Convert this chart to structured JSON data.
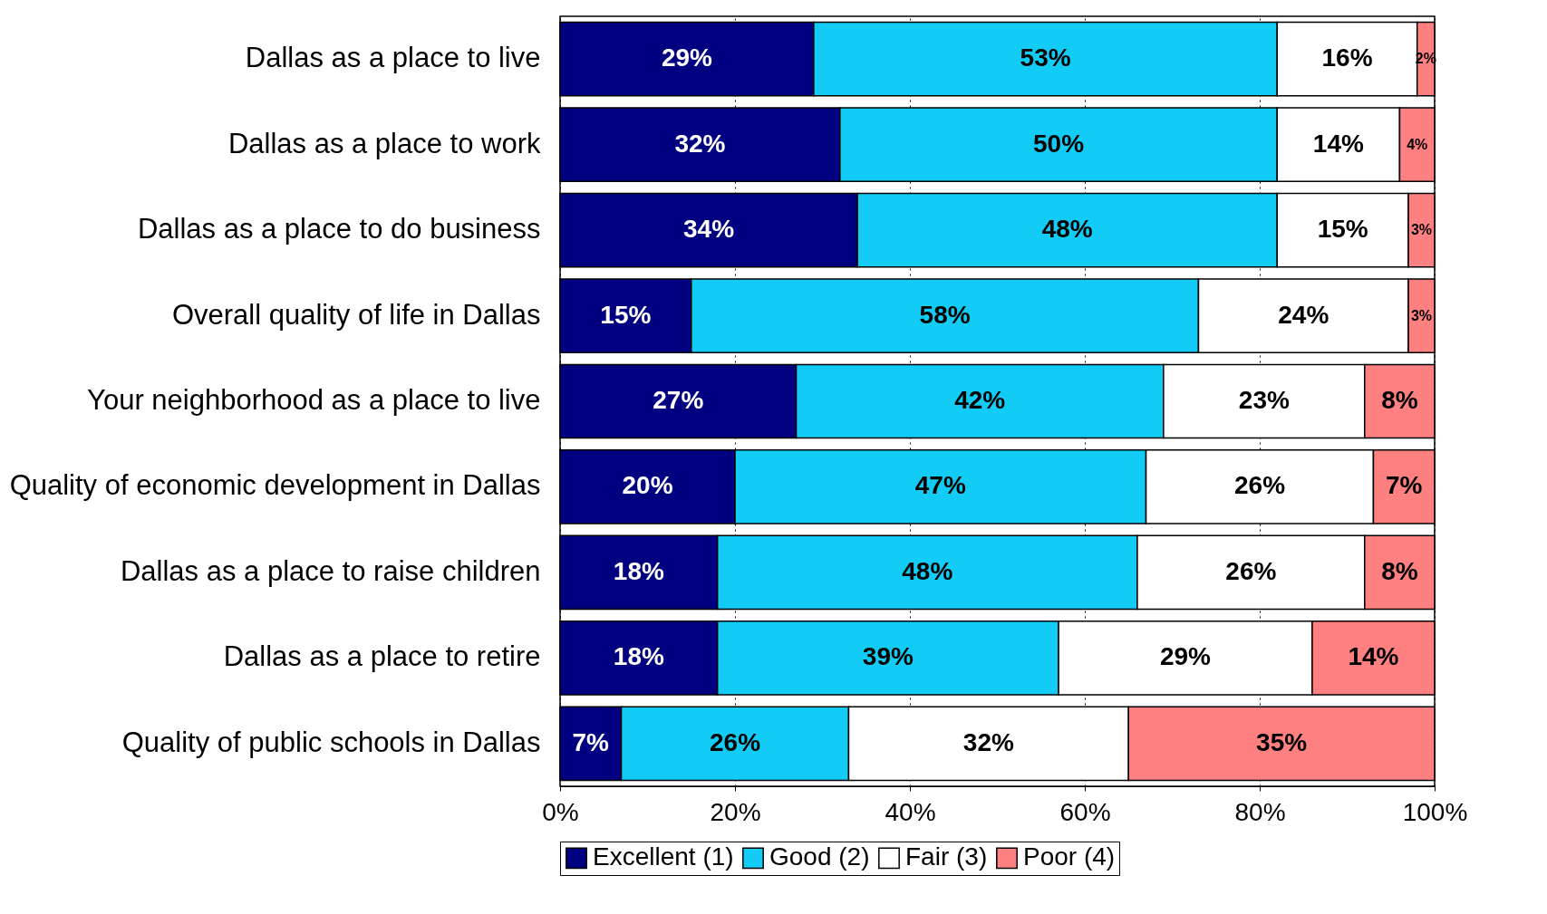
{
  "chart_data": {
    "type": "bar",
    "orientation": "horizontal",
    "stacked": true,
    "categories": [
      "Dallas as a place to live",
      "Dallas as a place to work",
      "Dallas as a place to do business",
      "Overall quality of life in Dallas",
      "Your neighborhood as a place to live",
      "Quality of economic development in Dallas",
      "Dallas as a place to raise children",
      "Dallas as a place to retire",
      "Quality of public schools in Dallas"
    ],
    "series": [
      {
        "name": "Excellent (1)",
        "color": "#000080",
        "values": [
          29,
          32,
          34,
          15,
          27,
          20,
          18,
          18,
          7
        ],
        "value_labels": [
          "29%",
          "32%",
          "34%",
          "15%",
          "27%",
          "20%",
          "18%",
          "18%",
          "7%"
        ]
      },
      {
        "name": "Good (2)",
        "color": "#12ccf5",
        "values": [
          53,
          50,
          48,
          58,
          42,
          47,
          48,
          39,
          26
        ],
        "value_labels": [
          "53%",
          "50%",
          "48%",
          "58%",
          "42%",
          "47%",
          "48%",
          "39%",
          "26%"
        ]
      },
      {
        "name": "Fair (3)",
        "color": "#ffffff",
        "values": [
          16,
          14,
          15,
          24,
          23,
          26,
          26,
          29,
          32
        ],
        "value_labels": [
          "16%",
          "14%",
          "15%",
          "24%",
          "23%",
          "26%",
          "26%",
          "29%",
          "32%"
        ]
      },
      {
        "name": "Poor (4)",
        "color": "#ff8080",
        "values": [
          2,
          4,
          3,
          3,
          8,
          7,
          8,
          14,
          35
        ],
        "value_labels": [
          "2%",
          "4%",
          "3%",
          "3%",
          "8%",
          "7%",
          "8%",
          "14%",
          "35%"
        ]
      }
    ],
    "xlim": [
      0,
      100
    ],
    "xticks": [
      {
        "value": 0,
        "label": "0%"
      },
      {
        "value": 20,
        "label": "20%"
      },
      {
        "value": 40,
        "label": "40%"
      },
      {
        "value": 60,
        "label": "60%"
      },
      {
        "value": 80,
        "label": "80%"
      },
      {
        "value": 100,
        "label": "100%"
      }
    ],
    "grid": "x",
    "legend": "bottom"
  }
}
